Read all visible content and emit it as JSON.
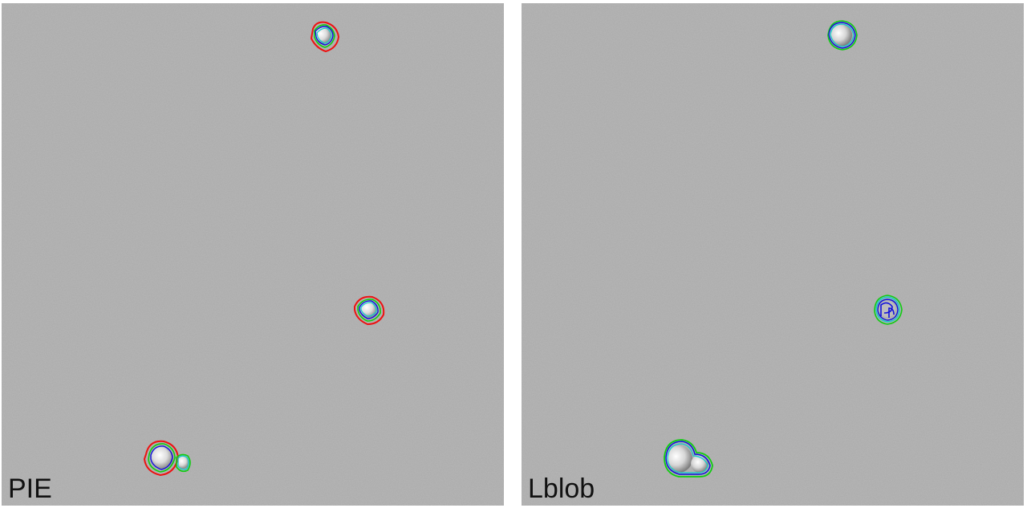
{
  "panels": [
    {
      "id": "left",
      "label": "PIE",
      "contour_colors": [
        "red",
        "green",
        "blue",
        "cyan"
      ]
    },
    {
      "id": "right",
      "label": "Lblob",
      "contour_colors": [
        "green",
        "blue",
        "cyan"
      ]
    }
  ],
  "colors": {
    "background_gray": "#a9a9a9",
    "red": "#ee1111",
    "green": "#11cc11",
    "blue": "#1111dd",
    "cyan": "#11cccc"
  }
}
